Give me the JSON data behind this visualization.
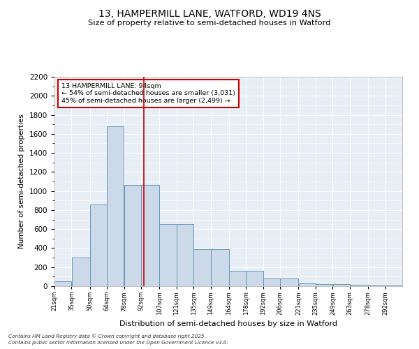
{
  "title_line1": "13, HAMPERMILL LANE, WATFORD, WD19 4NS",
  "title_line2": "Size of property relative to semi-detached houses in Watford",
  "xlabel": "Distribution of semi-detached houses by size in Watford",
  "ylabel": "Number of semi-detached properties",
  "footer_line1": "Contains HM Land Registry data © Crown copyright and database right 2025.",
  "footer_line2": "Contains public sector information licensed under the Open Government Licence v3.0.",
  "annotation_line1": "13 HAMPERMILL LANE: 94sqm",
  "annotation_line2": "← 54% of semi-detached houses are smaller (3,031)",
  "annotation_line3": "45% of semi-detached houses are larger (2,499) →",
  "property_size": 94,
  "bar_color": "#ccd9e8",
  "bar_edge_color": "#6699bb",
  "marker_color": "#cc0000",
  "background_color": "#e8eef5",
  "annotation_box_color": "#ffffff",
  "annotation_box_edge": "#cc0000",
  "bins": [
    21,
    35,
    50,
    64,
    78,
    92,
    107,
    121,
    135,
    149,
    164,
    178,
    192,
    206,
    221,
    235,
    249,
    263,
    278,
    292,
    306
  ],
  "bar_values": [
    50,
    300,
    860,
    1680,
    1060,
    1060,
    650,
    650,
    390,
    390,
    160,
    160,
    80,
    80,
    30,
    25,
    20,
    15,
    8,
    5
  ],
  "ylim": [
    0,
    2200
  ],
  "yticks": [
    0,
    200,
    400,
    600,
    800,
    1000,
    1200,
    1400,
    1600,
    1800,
    2000,
    2200
  ]
}
